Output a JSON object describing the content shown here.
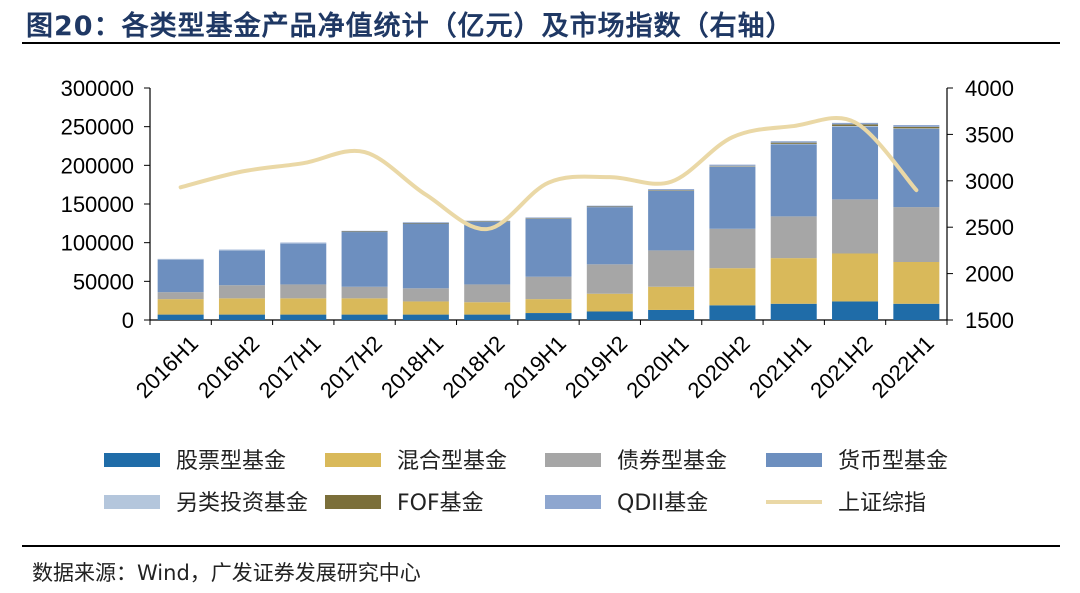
{
  "title": "图20：各类型基金产品净值统计（亿元）及市场指数（右轴）",
  "source": "数据来源：Wind，广发证券发展研究中心",
  "chart_data": {
    "type": "bar",
    "stacked": true,
    "title": "各类型基金产品净值统计（亿元）及市场指数（右轴）",
    "categories": [
      "2016H1",
      "2016H2",
      "2017H1",
      "2017H2",
      "2018H1",
      "2018H2",
      "2019H1",
      "2019H2",
      "2020H1",
      "2020H2",
      "2021H1",
      "2021H2",
      "2022H1"
    ],
    "ylim": [
      0,
      300000
    ],
    "yticks": [
      0,
      50000,
      100000,
      150000,
      200000,
      250000,
      300000
    ],
    "y2lim": [
      1500,
      4000
    ],
    "y2ticks": [
      1500,
      2000,
      2500,
      3000,
      3500,
      4000
    ],
    "series": [
      {
        "name": "股票型基金",
        "color": "#1f6ca8",
        "axis": "left",
        "values": [
          7000,
          7000,
          7000,
          7000,
          7000,
          7000,
          9000,
          11000,
          13000,
          19000,
          21000,
          24000,
          21000
        ]
      },
      {
        "name": "混合型基金",
        "color": "#d9b95a",
        "axis": "left",
        "values": [
          20000,
          21000,
          21000,
          21000,
          17000,
          16000,
          18000,
          23000,
          30000,
          48000,
          59000,
          62000,
          54000
        ]
      },
      {
        "name": "债券型基金",
        "color": "#a6a6a6",
        "axis": "left",
        "values": [
          9000,
          17000,
          18000,
          15000,
          17000,
          23000,
          29000,
          38000,
          47000,
          51000,
          54000,
          70000,
          71000
        ]
      },
      {
        "name": "货币型基金",
        "color": "#6d8fbf",
        "axis": "left",
        "values": [
          42000,
          45000,
          53000,
          71000,
          84000,
          81000,
          75000,
          74000,
          77000,
          80000,
          93000,
          94000,
          101000
        ]
      },
      {
        "name": "另类投资基金",
        "color": "#b4c6dc",
        "axis": "left",
        "values": [
          300,
          300,
          300,
          300,
          300,
          300,
          400,
          500,
          600,
          700,
          800,
          900,
          800
        ]
      },
      {
        "name": "FOF基金",
        "color": "#7b6f3a",
        "axis": "left",
        "values": [
          0,
          0,
          0,
          100,
          200,
          200,
          200,
          200,
          400,
          700,
          1500,
          2000,
          2000
        ]
      },
      {
        "name": "QDII基金",
        "color": "#8ea6cf",
        "axis": "left",
        "values": [
          700,
          700,
          800,
          900,
          900,
          900,
          1000,
          1100,
          1300,
          1500,
          1900,
          2000,
          2300
        ]
      },
      {
        "name": "上证综指",
        "color": "#ead8a6",
        "axis": "right",
        "type": "line",
        "values": [
          2930,
          3100,
          3190,
          3310,
          2850,
          2480,
          2980,
          3040,
          2990,
          3470,
          3590,
          3630,
          2900
        ]
      }
    ],
    "legend": [
      "股票型基金",
      "混合型基金",
      "债券型基金",
      "货币型基金",
      "另类投资基金",
      "FOF基金",
      "QDII基金",
      "上证综指"
    ],
    "legend_position": "bottom"
  }
}
